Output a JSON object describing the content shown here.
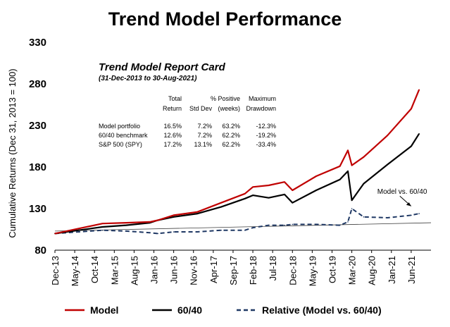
{
  "chart_data": {
    "type": "line",
    "title": "Trend Model Performance",
    "xlabel": "",
    "ylabel": "Cumulative Returns (Dec 31, 2013 = 100)",
    "ylim": [
      80,
      330
    ],
    "yticks": [
      80,
      130,
      180,
      230,
      280,
      330
    ],
    "xlim": [
      "2013-12",
      "2021-11"
    ],
    "xticks": [
      "Dec-13",
      "May-14",
      "Oct-14",
      "Mar-15",
      "Aug-15",
      "Jan-16",
      "Jun-16",
      "Nov-16",
      "Apr-17",
      "Sep-17",
      "Feb-18",
      "Jul-18",
      "Dec-18",
      "May-19",
      "Oct-19",
      "Mar-20",
      "Aug-20",
      "Jan-21",
      "Jun-21"
    ],
    "x": [
      "2013-12",
      "2014-06",
      "2014-12",
      "2015-06",
      "2015-12",
      "2016-02",
      "2016-06",
      "2016-12",
      "2017-06",
      "2017-12",
      "2018-02",
      "2018-06",
      "2018-10",
      "2018-12",
      "2019-06",
      "2019-12",
      "2020-02",
      "2020-03",
      "2020-06",
      "2020-12",
      "2021-06",
      "2021-08"
    ],
    "series": [
      {
        "name": "Model",
        "color": "#c00000",
        "style": "solid",
        "values": [
          100,
          106,
          112,
          113,
          114,
          116,
          122,
          126,
          137,
          148,
          156,
          158,
          162,
          152,
          169,
          181,
          200,
          182,
          192,
          218,
          250,
          273
        ]
      },
      {
        "name": "60/40",
        "color": "#000000",
        "style": "solid",
        "values": [
          100,
          104,
          108,
          110,
          113,
          116,
          120,
          124,
          132,
          142,
          146,
          143,
          147,
          137,
          152,
          165,
          175,
          140,
          160,
          183,
          205,
          220
        ]
      },
      {
        "name": "Relative (Model vs. 60/40)",
        "color": "#1f3864",
        "style": "dashed",
        "values": [
          100,
          102,
          104,
          103,
          101,
          100,
          102,
          102,
          104,
          104,
          107,
          110,
          110,
          111,
          111,
          110,
          114,
          130,
          120,
          119,
          122,
          124
        ]
      }
    ],
    "annotations": [
      {
        "text": "Model vs. 60/40",
        "at": [
          "2021-01",
          124
        ]
      }
    ],
    "legend": "bottom",
    "grid": false
  },
  "report_card": {
    "title": "Trend Model Report Card",
    "subtitle": "(31-Dec-2013 to 30-Aug-2021)",
    "headers": [
      [
        "Total",
        "Return"
      ],
      [
        "",
        "Std Dev"
      ],
      [
        "% Positive",
        "(weeks)"
      ],
      [
        "Maximum",
        "Drawdown"
      ]
    ],
    "rows": [
      {
        "label": "Model portfolio",
        "values": [
          "16.5%",
          "7.2%",
          "63.2%",
          "-12.3%"
        ]
      },
      {
        "label": "60/40 benchmark",
        "values": [
          "12.6%",
          "7.2%",
          "62.2%",
          "-19.2%"
        ]
      },
      {
        "label": "S&P 500 (SPY)",
        "values": [
          "17.2%",
          "13.1%",
          "62.2%",
          "-33.4%"
        ]
      }
    ]
  },
  "legend": {
    "model": "Model",
    "sixty_forty": "60/40",
    "relative": "Relative (Model vs. 60/40)"
  }
}
